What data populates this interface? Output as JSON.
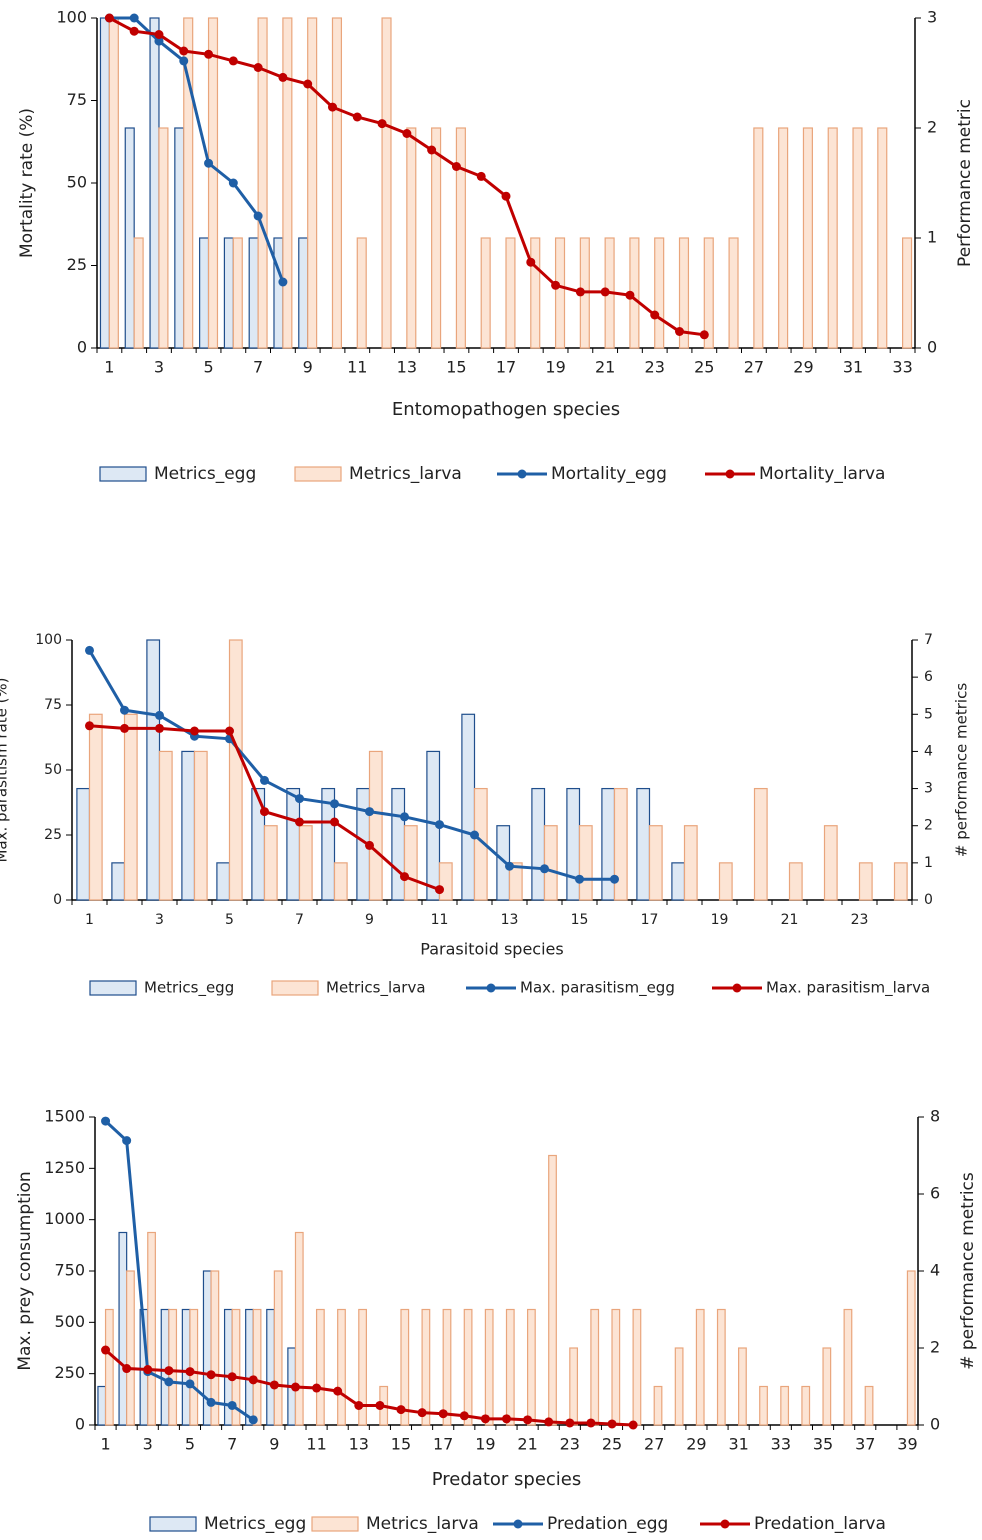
{
  "chart_data": [
    {
      "type": "combo",
      "xlabel": "Entomopathogen species",
      "ylabel": "Mortality rate (%)",
      "y2label": "Performance metric",
      "categories": [
        "1",
        null,
        "3",
        null,
        "5",
        null,
        "7",
        null,
        "9",
        null,
        "11",
        null,
        "13",
        null,
        "15",
        null,
        "17",
        null,
        "19",
        null,
        "21",
        null,
        "23",
        null,
        "25",
        null,
        "27",
        null,
        "29",
        null,
        "31",
        null,
        "33"
      ],
      "ylim": [
        0,
        100
      ],
      "yticks": [
        0,
        25,
        50,
        75,
        100
      ],
      "y2lim": [
        0,
        3
      ],
      "y2ticks": [
        0,
        1,
        2,
        3
      ],
      "series": [
        {
          "name": "Metrics_egg",
          "type": "bar",
          "axis": "y2",
          "color": "#1f4e8c",
          "fill": "#dde8f4",
          "values": [
            3,
            2,
            3,
            2,
            1,
            1,
            1,
            1,
            1,
            null,
            null,
            null,
            null,
            null,
            null,
            null,
            null,
            null,
            null,
            null,
            null,
            null,
            null,
            null,
            null,
            null,
            null,
            null,
            null,
            null,
            null,
            null,
            null
          ]
        },
        {
          "name": "Metrics_larva",
          "type": "bar",
          "axis": "y2",
          "color": "#e9a57c",
          "fill": "#fce4d4",
          "values": [
            3,
            1,
            2,
            3,
            3,
            1,
            3,
            3,
            3,
            3,
            1,
            3,
            2,
            2,
            2,
            1,
            1,
            1,
            1,
            1,
            1,
            1,
            1,
            1,
            1,
            1,
            2,
            2,
            2,
            2,
            2,
            2,
            1
          ]
        },
        {
          "name": "Mortality_egg",
          "type": "line",
          "color": "#1f5fa6",
          "values": [
            100,
            100,
            93,
            87,
            56,
            50,
            40,
            20,
            null,
            null,
            null,
            null,
            null,
            null,
            null,
            null,
            null,
            null,
            null,
            null,
            null,
            null,
            null,
            null,
            null,
            null,
            null,
            null,
            null,
            null,
            null,
            null,
            null
          ]
        },
        {
          "name": "Mortality_larva",
          "type": "line",
          "color": "#c00000",
          "values": [
            100,
            96,
            95,
            90,
            89,
            87,
            85,
            82,
            80,
            73,
            70,
            68,
            65,
            60,
            55,
            52,
            46,
            26,
            19,
            17,
            17,
            16,
            10,
            5,
            4,
            null,
            null,
            null,
            null,
            null,
            null,
            null,
            null
          ]
        }
      ]
    },
    {
      "type": "combo",
      "xlabel": "Parasitoid species",
      "ylabel": "Max. parasitism rate (%)",
      "y2label": "# performance metrics",
      "categories": [
        "1",
        null,
        "3",
        null,
        "5",
        null,
        "7",
        null,
        "9",
        null,
        "11",
        null,
        "13",
        null,
        "15",
        null,
        "17",
        null,
        "19",
        null,
        "21",
        null,
        "23",
        null
      ],
      "ylim": [
        0,
        100
      ],
      "yticks": [
        0,
        25,
        50,
        75,
        100
      ],
      "y2lim": [
        0,
        7
      ],
      "y2ticks": [
        0,
        1,
        2,
        3,
        4,
        5,
        6,
        7
      ],
      "series": [
        {
          "name": "Metrics_egg",
          "type": "bar",
          "axis": "y2",
          "color": "#1f4e8c",
          "fill": "#dde8f4",
          "values": [
            3,
            1,
            7,
            4,
            1,
            3,
            3,
            3,
            3,
            3,
            4,
            5,
            2,
            3,
            3,
            3,
            3,
            1,
            null,
            null,
            null,
            null,
            null,
            null
          ]
        },
        {
          "name": "Metrics_larva",
          "type": "bar",
          "axis": "y2",
          "color": "#e9a57c",
          "fill": "#fce4d4",
          "values": [
            5,
            5,
            4,
            4,
            7,
            2,
            2,
            1,
            4,
            2,
            1,
            3,
            1,
            2,
            2,
            3,
            2,
            2,
            1,
            3,
            1,
            2,
            1,
            1
          ]
        },
        {
          "name": "Max. parasitism_egg",
          "type": "line",
          "color": "#1f5fa6",
          "values": [
            96,
            73,
            71,
            63,
            62,
            46,
            39,
            37,
            34,
            32,
            29,
            25,
            13,
            12,
            8,
            8,
            null,
            null,
            null,
            null,
            null,
            null,
            null,
            null
          ]
        },
        {
          "name": "Max. parasitism_larva",
          "type": "line",
          "color": "#c00000",
          "values": [
            67,
            66,
            66,
            65,
            65,
            34,
            30,
            30,
            21,
            9,
            4,
            null,
            null,
            null,
            null,
            null,
            null,
            null,
            null,
            null,
            null,
            null,
            null,
            null
          ]
        }
      ]
    },
    {
      "type": "combo",
      "xlabel": "Predator species",
      "ylabel": "Max. prey consumption",
      "y2label": "# performance metrics",
      "categories": [
        "1",
        null,
        "3",
        null,
        "5",
        null,
        "7",
        null,
        "9",
        null,
        "11",
        null,
        "13",
        null,
        "15",
        null,
        "17",
        null,
        "19",
        null,
        "21",
        null,
        "23",
        null,
        "25",
        null,
        "27",
        null,
        "29",
        null,
        "31",
        null,
        "33",
        null,
        "35",
        null,
        "37",
        null,
        "39"
      ],
      "ylim": [
        0,
        1500
      ],
      "yticks": [
        0,
        250,
        500,
        750,
        1000,
        1250,
        1500
      ],
      "y2lim": [
        0,
        8
      ],
      "y2ticks": [
        0,
        2,
        4,
        6,
        8
      ],
      "series": [
        {
          "name": "Metrics_egg",
          "type": "bar",
          "axis": "y2",
          "color": "#1f4e8c",
          "fill": "#dde8f4",
          "values": [
            1,
            5,
            3,
            3,
            3,
            4,
            3,
            3,
            3,
            2,
            null,
            null,
            null,
            null,
            null,
            null,
            null,
            null,
            null,
            null,
            null,
            null,
            null,
            null,
            null,
            null,
            null,
            null,
            null,
            null,
            null,
            null,
            null,
            null,
            null,
            null,
            null,
            null,
            null
          ]
        },
        {
          "name": "Metrics_larva",
          "type": "bar",
          "axis": "y2",
          "color": "#e9a57c",
          "fill": "#fce4d4",
          "values": [
            3,
            4,
            5,
            3,
            3,
            4,
            3,
            3,
            4,
            5,
            3,
            3,
            3,
            1,
            3,
            3,
            3,
            3,
            3,
            3,
            3,
            7,
            2,
            3,
            3,
            3,
            1,
            2,
            3,
            3,
            2,
            1,
            1,
            1,
            2,
            3,
            1,
            null,
            4
          ]
        },
        {
          "name": "Predation_egg",
          "type": "line",
          "color": "#1f5fa6",
          "values": [
            1480,
            1385,
            260,
            210,
            200,
            110,
            95,
            25,
            null,
            null,
            null,
            null,
            null,
            null,
            null,
            null,
            null,
            null,
            null,
            null,
            null,
            null,
            null,
            null,
            null,
            null,
            null,
            null,
            null,
            null,
            null,
            null,
            null,
            null,
            null,
            null,
            null,
            null,
            null
          ]
        },
        {
          "name": "Predation_larva",
          "type": "line",
          "color": "#c00000",
          "values": [
            365,
            275,
            270,
            265,
            260,
            245,
            235,
            220,
            195,
            185,
            180,
            165,
            95,
            95,
            75,
            60,
            55,
            45,
            30,
            30,
            25,
            15,
            10,
            10,
            5,
            0,
            null,
            null,
            null,
            null,
            null,
            null,
            null,
            null,
            null,
            null,
            null,
            null,
            null
          ]
        }
      ]
    }
  ]
}
